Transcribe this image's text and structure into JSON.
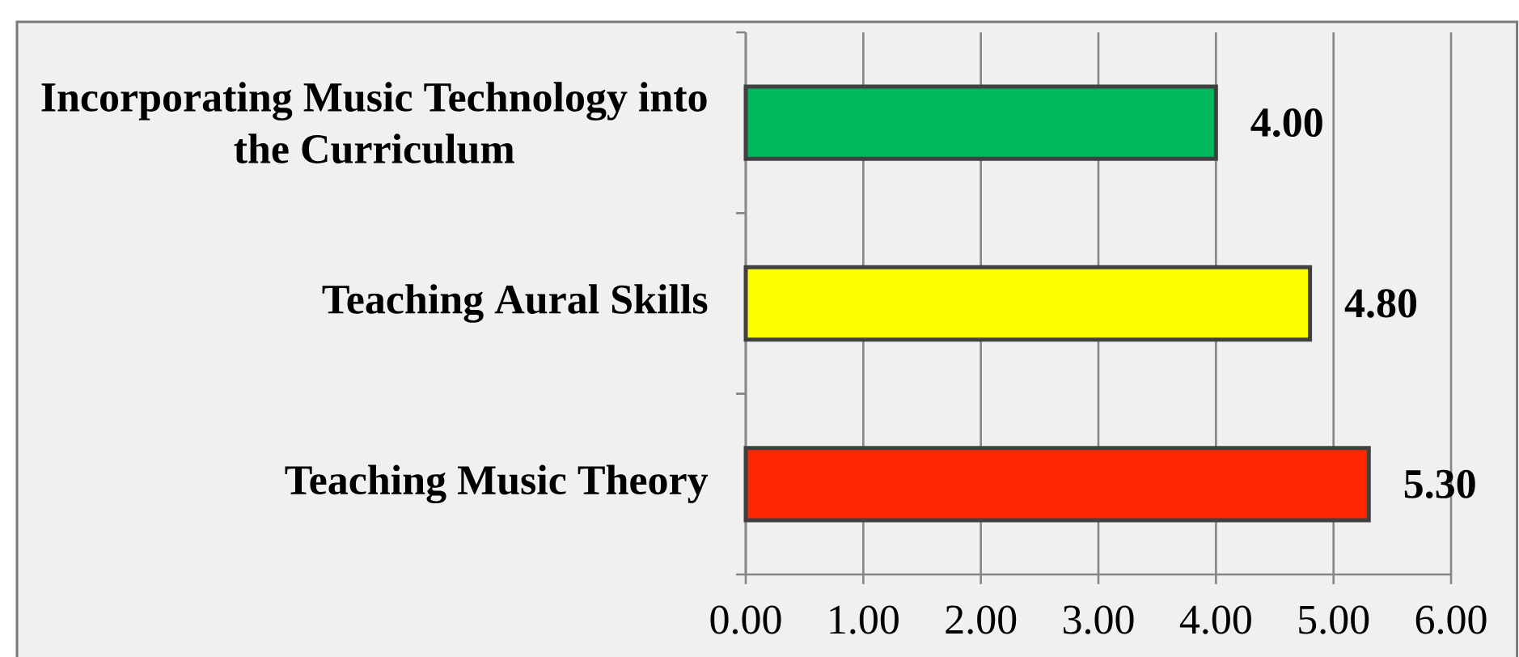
{
  "chart_data": {
    "type": "bar",
    "orientation": "horizontal",
    "categories": [
      "Incorporating Music Technology into the Curriculum",
      "Teaching Aural Skills",
      "Teaching Music Theory"
    ],
    "values": [
      4.0,
      4.8,
      5.3
    ],
    "colors": [
      "#00b85c",
      "#ffff00",
      "#ff2600"
    ],
    "value_labels": [
      "4.00",
      "4.80",
      "5.30"
    ],
    "xlim": [
      0,
      6
    ],
    "xticks": [
      {
        "value": 0,
        "label": "0.00"
      },
      {
        "value": 1,
        "label": "1.00"
      },
      {
        "value": 2,
        "label": "2.00"
      },
      {
        "value": 3,
        "label": "3.00"
      },
      {
        "value": 4,
        "label": "4.00"
      },
      {
        "value": 5,
        "label": "5.00"
      },
      {
        "value": 6,
        "label": "6.00"
      }
    ],
    "grid": "x"
  }
}
